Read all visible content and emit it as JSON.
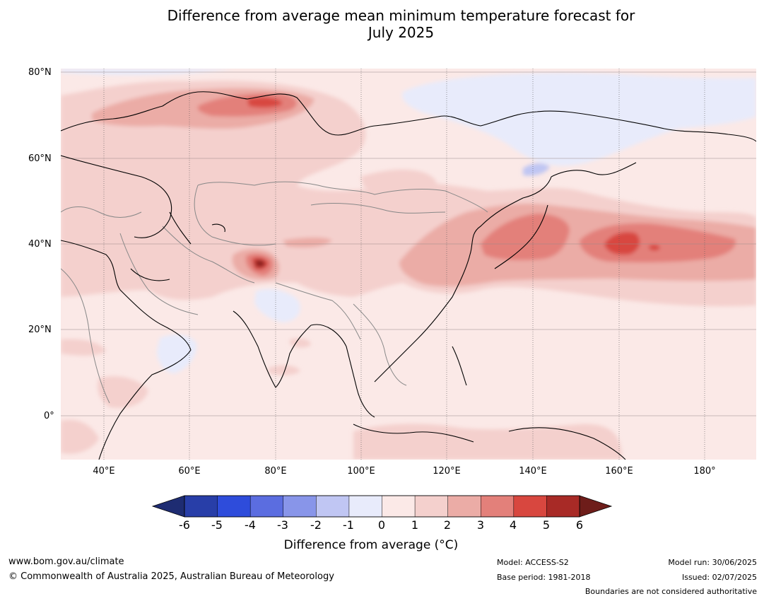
{
  "title": {
    "line1": "Difference from average mean minimum temperature forecast for",
    "line2": "July 2025"
  },
  "map": {
    "lat_labels": [
      "80°N",
      "60°N",
      "40°N",
      "20°N",
      "0°"
    ],
    "lon_labels": [
      "40°E",
      "60°E",
      "80°E",
      "100°E",
      "120°E",
      "140°E",
      "160°E",
      "180°"
    ],
    "features": [
      "coastlines",
      "country-boundaries",
      "graticule"
    ],
    "palette": {
      "0_1": "#fbe9e7",
      "1_2": "#f4d0cd",
      "2_3": "#ebaca6",
      "3_4": "#e3807a",
      "4_5": "#d8473f",
      "5_6": "#a82a26",
      "gt6": "#6e1d1a",
      "m1_0": "#e8ebfb",
      "m2_m1": "#c0c6f3",
      "m3_m2": "#8895e9",
      "m4_m3": "#5b6de0",
      "m5_m4": "#2e4cdb",
      "m6_m5": "#283ea8",
      "lt_m6": "#1e2c72"
    }
  },
  "colorbar": {
    "ticks": [
      "-6",
      "-5",
      "-4",
      "-3",
      "-2",
      "-1",
      "0",
      "1",
      "2",
      "3",
      "4",
      "5",
      "6"
    ],
    "label": "Difference from average (°C)",
    "colors": [
      "#283ea8",
      "#2e4cdb",
      "#5b6de0",
      "#8895e9",
      "#c0c6f3",
      "#e8ebfb",
      "#fbe9e7",
      "#f4d0cd",
      "#ebaca6",
      "#e3807a",
      "#d8473f",
      "#a82a26"
    ],
    "low_extend_color": "#1e2c72",
    "high_extend_color": "#6e1d1a"
  },
  "footer": {
    "website": "www.bom.gov.au/climate",
    "copyright": "© Commonwealth of Australia 2025, Australian Bureau of Meteorology",
    "model": "Model: ACCESS-S2",
    "base_period": "Base period: 1981-2018",
    "model_run": "Model run: 30/06/2025",
    "issued": "Issued: 02/07/2025",
    "disclaimer": "Boundaries are not considered authoritative"
  }
}
